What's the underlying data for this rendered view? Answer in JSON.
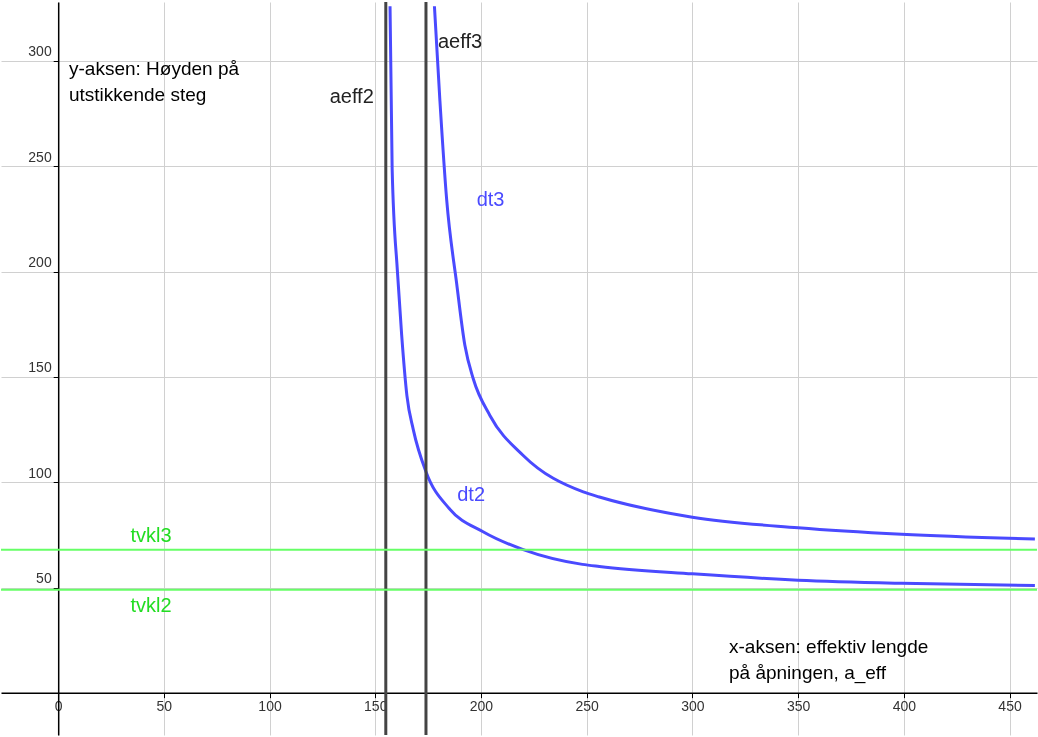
{
  "chart_data": {
    "type": "line",
    "xlim": [
      -27,
      463
    ],
    "ylim": [
      -20,
      328
    ],
    "xticks": [
      0,
      50,
      100,
      150,
      200,
      250,
      300,
      350,
      400,
      450
    ],
    "yticks": [
      50,
      100,
      150,
      200,
      250,
      300
    ],
    "grid": true,
    "marker": "none",
    "line_style": "solid",
    "series": [
      {
        "name": "dt2",
        "color": "#4a4aff",
        "x": [
          157,
          158,
          160.5,
          162.5,
          165,
          168,
          174,
          185,
          201,
          220,
          248,
          256,
          300,
          350,
          399,
          462
        ],
        "values": [
          326,
          249,
          200,
          170,
          141,
          125,
          105,
          87.5,
          76.5,
          68,
          61,
          60,
          56.5,
          53.5,
          52,
          51
        ]
      },
      {
        "name": "dt3",
        "color": "#4a4aff",
        "x": [
          178,
          180.6,
          183.8,
          188.5,
          192.4,
          196.4,
          204.3,
          220,
          248.4,
          256,
          300,
          350,
          399,
          462
        ],
        "values": [
          326,
          281,
          234,
          194.5,
          165,
          149,
          131.6,
          112.7,
          95.4,
          93,
          83.4,
          78.4,
          75.3,
          73
        ]
      }
    ],
    "ref_lines": [
      {
        "axis": "x",
        "value": 155,
        "label": "aeff2",
        "color": "#444444"
      },
      {
        "axis": "x",
        "value": 174,
        "label": "aeff3",
        "color": "#444444"
      },
      {
        "axis": "y",
        "value": 68,
        "label": "tvkl3",
        "color": "#66ff66"
      },
      {
        "axis": "y",
        "value": 49,
        "label": "tvkl2",
        "color": "#66ff66"
      }
    ],
    "annotations": [
      "y-aksen: Høyden på\nutstikkende steg",
      "x-aksen: effektiv lengde\npå åpningen, a_eff"
    ]
  }
}
